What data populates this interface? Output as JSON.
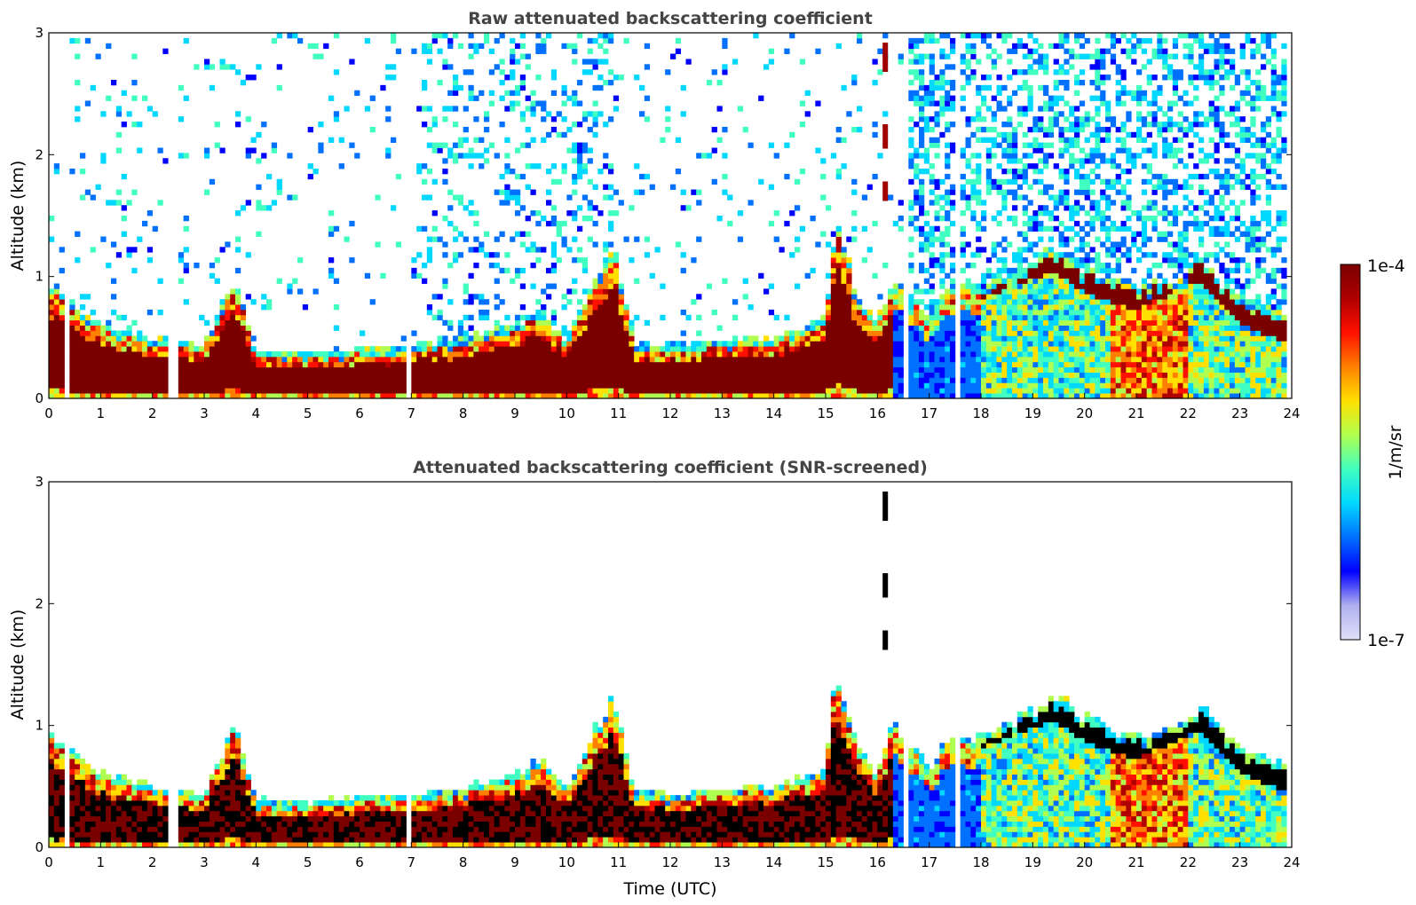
{
  "chart_data": [
    {
      "type": "heatmap",
      "title": "Raw attenuated backscattering coefficient",
      "xlabel": "",
      "ylabel": "Altitude (km)",
      "xlim": [
        0,
        24
      ],
      "ylim": [
        0,
        3
      ],
      "x_ticks": [
        "0",
        "1",
        "2",
        "3",
        "4",
        "5",
        "6",
        "7",
        "8",
        "9",
        "10",
        "11",
        "12",
        "13",
        "14",
        "15",
        "16",
        "17",
        "18",
        "19",
        "20",
        "21",
        "22",
        "23",
        "24"
      ],
      "y_ticks": [
        "0",
        "1",
        "2",
        "3"
      ],
      "data_gaps_hours": [
        [
          0.33,
          0.42
        ],
        [
          2.28,
          2.48
        ],
        [
          6.9,
          7.02
        ],
        [
          16.55,
          16.62
        ],
        [
          17.55,
          17.62
        ]
      ],
      "boundary_layer_top_km": [
        [
          0.0,
          0.9
        ],
        [
          0.5,
          0.7
        ],
        [
          1,
          0.55
        ],
        [
          2,
          0.45
        ],
        [
          3,
          0.38
        ],
        [
          3.6,
          0.95
        ],
        [
          4,
          0.33
        ],
        [
          5,
          0.32
        ],
        [
          6,
          0.35
        ],
        [
          7,
          0.38
        ],
        [
          8,
          0.42
        ],
        [
          9,
          0.55
        ],
        [
          9.5,
          0.65
        ],
        [
          10,
          0.42
        ],
        [
          10.9,
          1.2
        ],
        [
          11.3,
          0.4
        ],
        [
          12,
          0.38
        ],
        [
          13,
          0.42
        ],
        [
          14,
          0.45
        ],
        [
          15,
          0.6
        ],
        [
          15.2,
          1.4
        ],
        [
          15.6,
          0.8
        ],
        [
          16,
          0.55
        ],
        [
          16.3,
          0.95
        ],
        [
          17,
          0.6
        ],
        [
          17.5,
          0.9
        ],
        [
          18,
          0.85
        ],
        [
          19,
          1.05
        ],
        [
          19.4,
          1.2
        ],
        [
          20,
          1.0
        ],
        [
          21,
          0.85
        ],
        [
          22,
          0.95
        ],
        [
          22.2,
          1.12
        ],
        [
          23,
          0.75
        ],
        [
          23.8,
          0.65
        ]
      ],
      "residual_layer_km": [
        [
          18,
          0.9
        ],
        [
          19.4,
          1.12
        ],
        [
          20,
          0.95
        ],
        [
          21,
          0.8
        ],
        [
          22.2,
          1.05
        ],
        [
          23,
          0.7
        ],
        [
          23.8,
          0.55
        ]
      ]
    },
    {
      "type": "heatmap",
      "title": "Attenuated backscattering coefficient (SNR-screened)",
      "xlabel": "Time (UTC)",
      "ylabel": "Altitude (km)",
      "xlim": [
        0,
        24
      ],
      "ylim": [
        0,
        3
      ],
      "x_ticks": [
        "0",
        "1",
        "2",
        "3",
        "4",
        "5",
        "6",
        "7",
        "8",
        "9",
        "10",
        "11",
        "12",
        "13",
        "14",
        "15",
        "16",
        "17",
        "18",
        "19",
        "20",
        "21",
        "22",
        "23",
        "24"
      ],
      "y_ticks": [
        "0",
        "1",
        "2",
        "3"
      ]
    }
  ],
  "colorbar": {
    "label": "1/m/sr",
    "max_label": "1e-4",
    "min_label": "1e-7",
    "colormap": [
      "#e0e0f8",
      "#b0b0f0",
      "#0000ff",
      "#0070ff",
      "#00d8ff",
      "#40ffc0",
      "#b0ff50",
      "#ffe000",
      "#ff8000",
      "#ff1000",
      "#b00000",
      "#7a0000"
    ]
  }
}
